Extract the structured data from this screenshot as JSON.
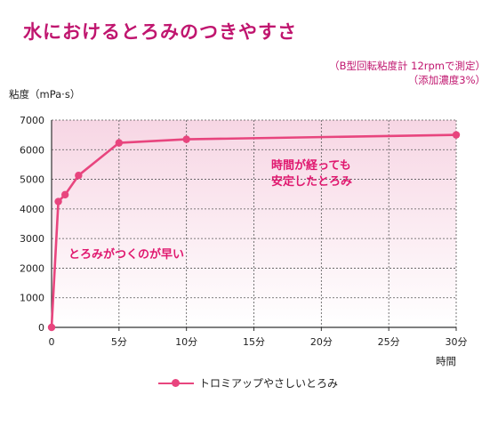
{
  "title": "水におけるとろみのつきやすさ",
  "subtitle_line1": "（B型回転粘度計 12rpmで測定）",
  "subtitle_line2": "（添加濃度3%）",
  "colors": {
    "accent": "#c0166f",
    "series": "#e8457e",
    "annotation": "#e0186f",
    "gradient_top": "#f7d6e4"
  },
  "chart_data": {
    "type": "line",
    "ylabel": "粘度（mPa·s）",
    "xlabel": "時間",
    "xlim": [
      0,
      30
    ],
    "ylim": [
      0,
      7000
    ],
    "x_ticks": [
      0,
      5,
      10,
      15,
      20,
      25,
      30
    ],
    "x_tick_labels": [
      "0",
      "5分",
      "10分",
      "15分",
      "20分",
      "25分",
      "30分"
    ],
    "y_ticks": [
      0,
      1000,
      2000,
      3000,
      4000,
      5000,
      6000,
      7000
    ],
    "grid": true,
    "series": [
      {
        "name": "トロミアップやさしいとろみ",
        "x": [
          0,
          0.5,
          1,
          2,
          5,
          10,
          30
        ],
        "y": [
          0,
          4250,
          4480,
          5130,
          6230,
          6350,
          6500
        ]
      }
    ],
    "annotations": [
      "とろみがつくのが早い",
      "時間が経っても",
      "安定したとろみ"
    ],
    "legend_position": "bottom"
  }
}
